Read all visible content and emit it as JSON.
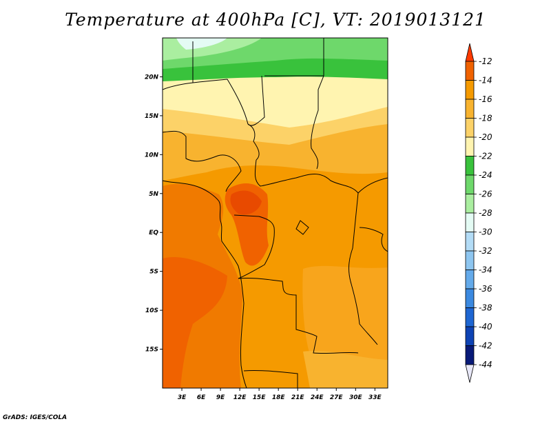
{
  "title": "Temperature at 400hPa [C], VT: 2019013121",
  "footer": "GrADS: IGES/COLA",
  "map": {
    "lon_range": [
      0,
      35
    ],
    "lat_range": [
      -20,
      25
    ],
    "lat_ticks": [
      {
        "label": "20N",
        "lat": 20
      },
      {
        "label": "15N",
        "lat": 15
      },
      {
        "label": "10N",
        "lat": 10
      },
      {
        "label": "5N",
        "lat": 5
      },
      {
        "label": "EQ",
        "lat": 0
      },
      {
        "label": "5S",
        "lat": -5
      },
      {
        "label": "10S",
        "lat": -10
      },
      {
        "label": "15S",
        "lat": -15
      }
    ],
    "lon_ticks": [
      {
        "label": "3E",
        "lon": 3
      },
      {
        "label": "6E",
        "lon": 6
      },
      {
        "label": "9E",
        "lon": 9
      },
      {
        "label": "12E",
        "lon": 12
      },
      {
        "label": "15E",
        "lon": 15
      },
      {
        "label": "18E",
        "lon": 18
      },
      {
        "label": "21E",
        "lon": 21
      },
      {
        "label": "24E",
        "lon": 24
      },
      {
        "label": "27E",
        "lon": 27
      },
      {
        "label": "30E",
        "lon": 30
      },
      {
        "label": "33E",
        "lon": 33
      }
    ]
  },
  "legend": {
    "levels": [
      "-12",
      "-14",
      "-16",
      "-18",
      "-20",
      "-22",
      "-24",
      "-26",
      "-28",
      "-30",
      "-32",
      "-34",
      "-36",
      "-38",
      "-40",
      "-42",
      "-44"
    ],
    "colors": [
      "#ff3a00",
      "#f06200",
      "#f59a00",
      "#f8b32f",
      "#fcd268",
      "#fff4b0",
      "#39c23c",
      "#6ed86b",
      "#aaeea0",
      "#e4fbf4",
      "#b3dcf6",
      "#8ec6f0",
      "#64aaea",
      "#3b89e0",
      "#1e66d2",
      "#0e43b4",
      "#081a78"
    ],
    "top_arrow_color": "#ff3a00",
    "bottom_arrow_color": "#e8e8f8"
  }
}
